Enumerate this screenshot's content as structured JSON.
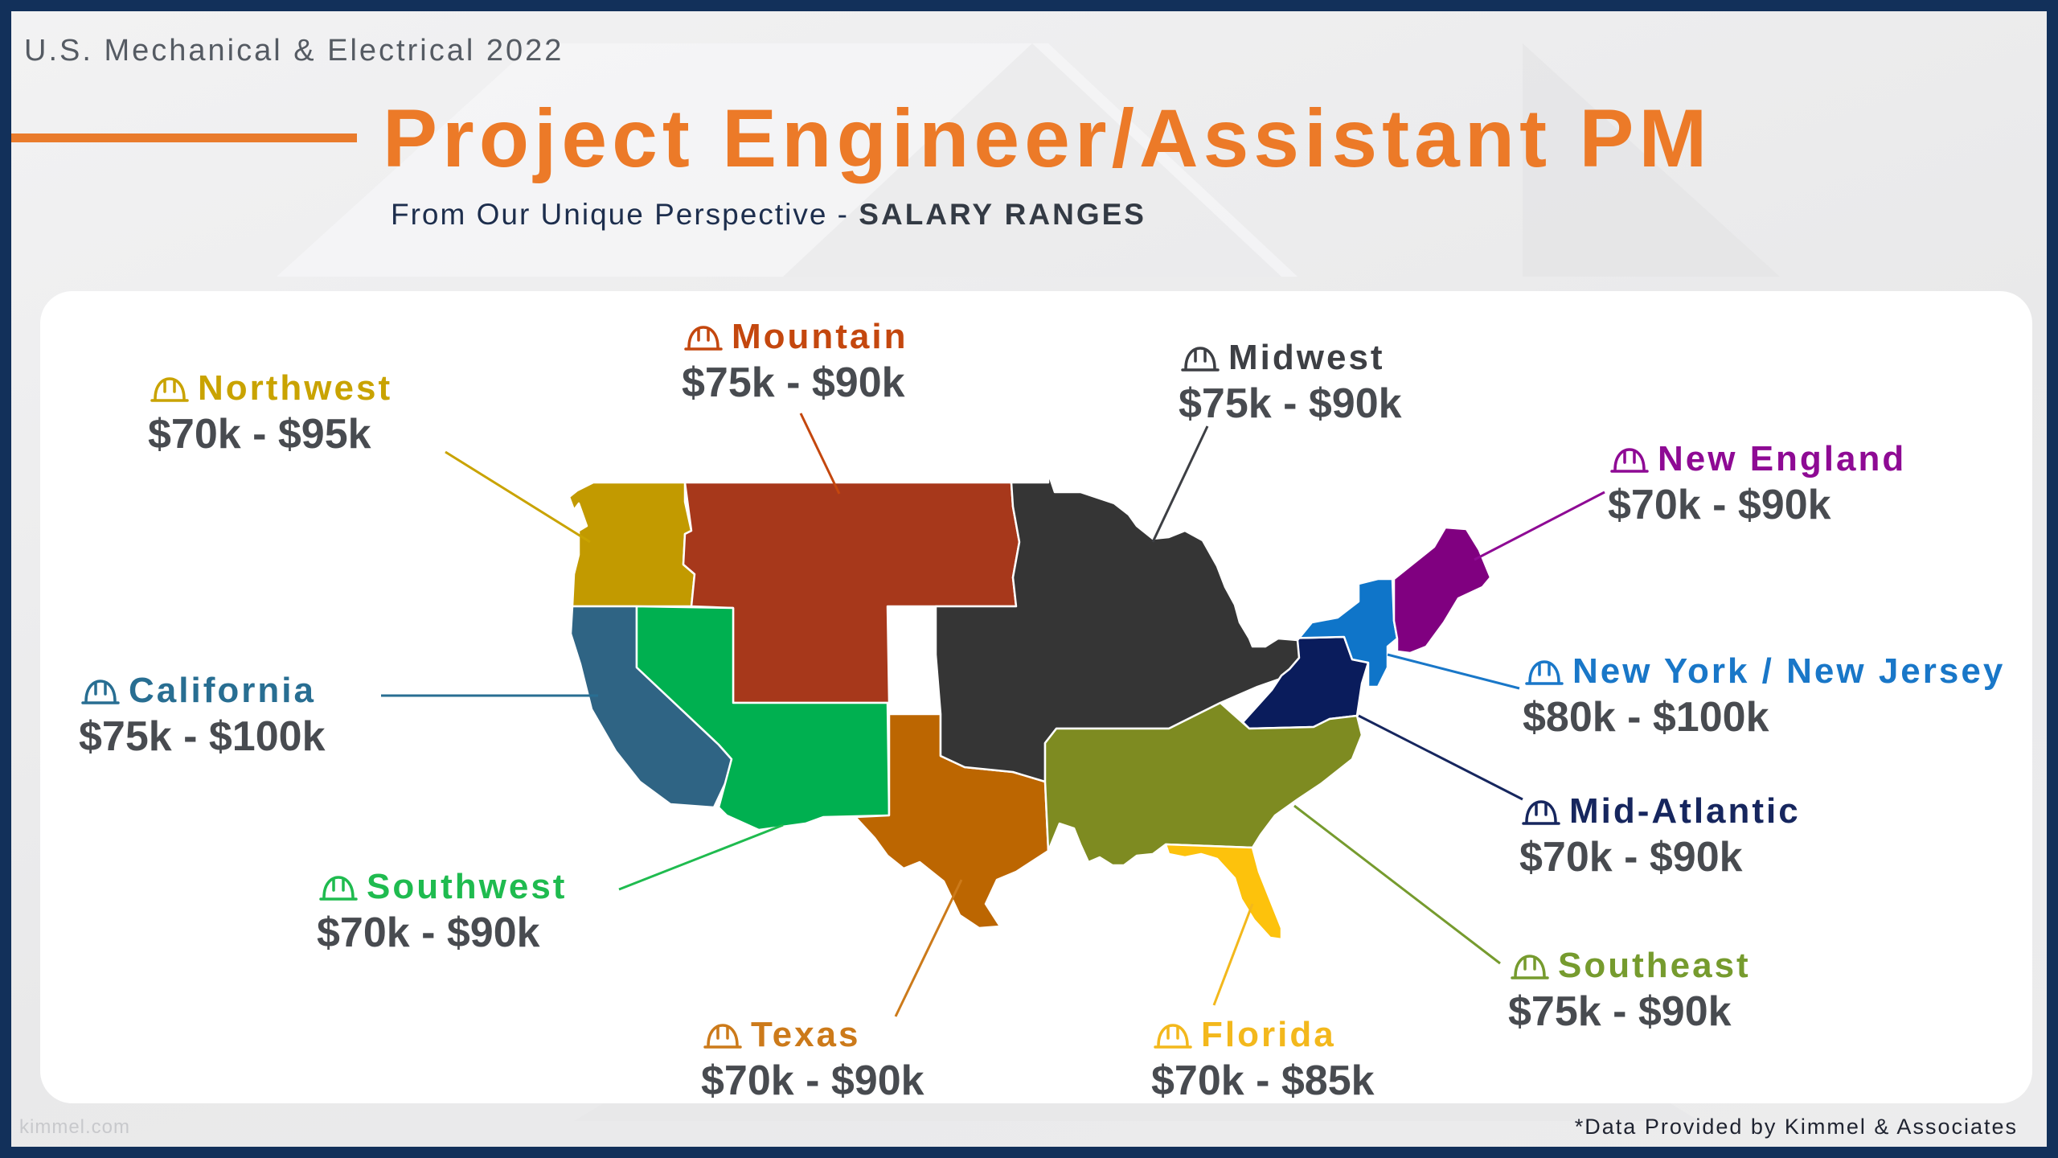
{
  "header": {
    "topline": "U.S. Mechanical & Electrical 2022",
    "title": "Project Engineer/Assistant PM",
    "subtitle_prefix": "From Our Unique Perspective -",
    "subtitle_emphasis": "SALARY RANGES"
  },
  "regions": [
    {
      "id": "northwest",
      "name": "Northwest",
      "range": "$70k - $95k",
      "color": "#c29a00",
      "name_color": "#c9a300",
      "icon": "hard-hat-icon"
    },
    {
      "id": "mountain",
      "name": "Mountain",
      "range": "$75k - $90k",
      "color": "#a7381b",
      "name_color": "#c4470e",
      "icon": "hard-hat-icon"
    },
    {
      "id": "midwest",
      "name": "Midwest",
      "range": "$75k - $90k",
      "color": "#353535",
      "name_color": "#3d3f44",
      "icon": "hard-hat-icon"
    },
    {
      "id": "new-england",
      "name": "New England",
      "range": "$70k - $90k",
      "color": "#800080",
      "name_color": "#8e0a94",
      "icon": "hard-hat-icon"
    },
    {
      "id": "new-york-new-jersey",
      "name": "New York / New Jersey",
      "range": "$80k - $100k",
      "color": "#0f75c9",
      "name_color": "#1977c8",
      "icon": "hard-hat-icon"
    },
    {
      "id": "mid-atlantic",
      "name": "Mid-Atlantic",
      "range": "$70k - $90k",
      "color": "#0a1c5c",
      "name_color": "#16265e",
      "icon": "hard-hat-icon"
    },
    {
      "id": "southeast",
      "name": "Southeast",
      "range": "$75k - $90k",
      "color": "#7e8b21",
      "name_color": "#769b2e",
      "icon": "hard-hat-icon"
    },
    {
      "id": "florida",
      "name": "Florida",
      "range": "$70k - $85k",
      "color": "#fdc20c",
      "name_color": "#f3b81c",
      "icon": "hard-hat-icon"
    },
    {
      "id": "texas",
      "name": "Texas",
      "range": "$70k - $90k",
      "color": "#bc6601",
      "name_color": "#cc7a1a",
      "icon": "hard-hat-icon"
    },
    {
      "id": "southwest",
      "name": "Southwest",
      "range": "$70k - $90k",
      "color": "#00b050",
      "name_color": "#1fbb4f",
      "icon": "hard-hat-icon"
    },
    {
      "id": "california",
      "name": "California",
      "range": "$75k - $100k",
      "color": "#2f6484",
      "name_color": "#286e92",
      "icon": "hard-hat-icon"
    }
  ],
  "footer": {
    "site": "kimmel.com",
    "note": "*Data Provided by Kimmel & Associates"
  }
}
